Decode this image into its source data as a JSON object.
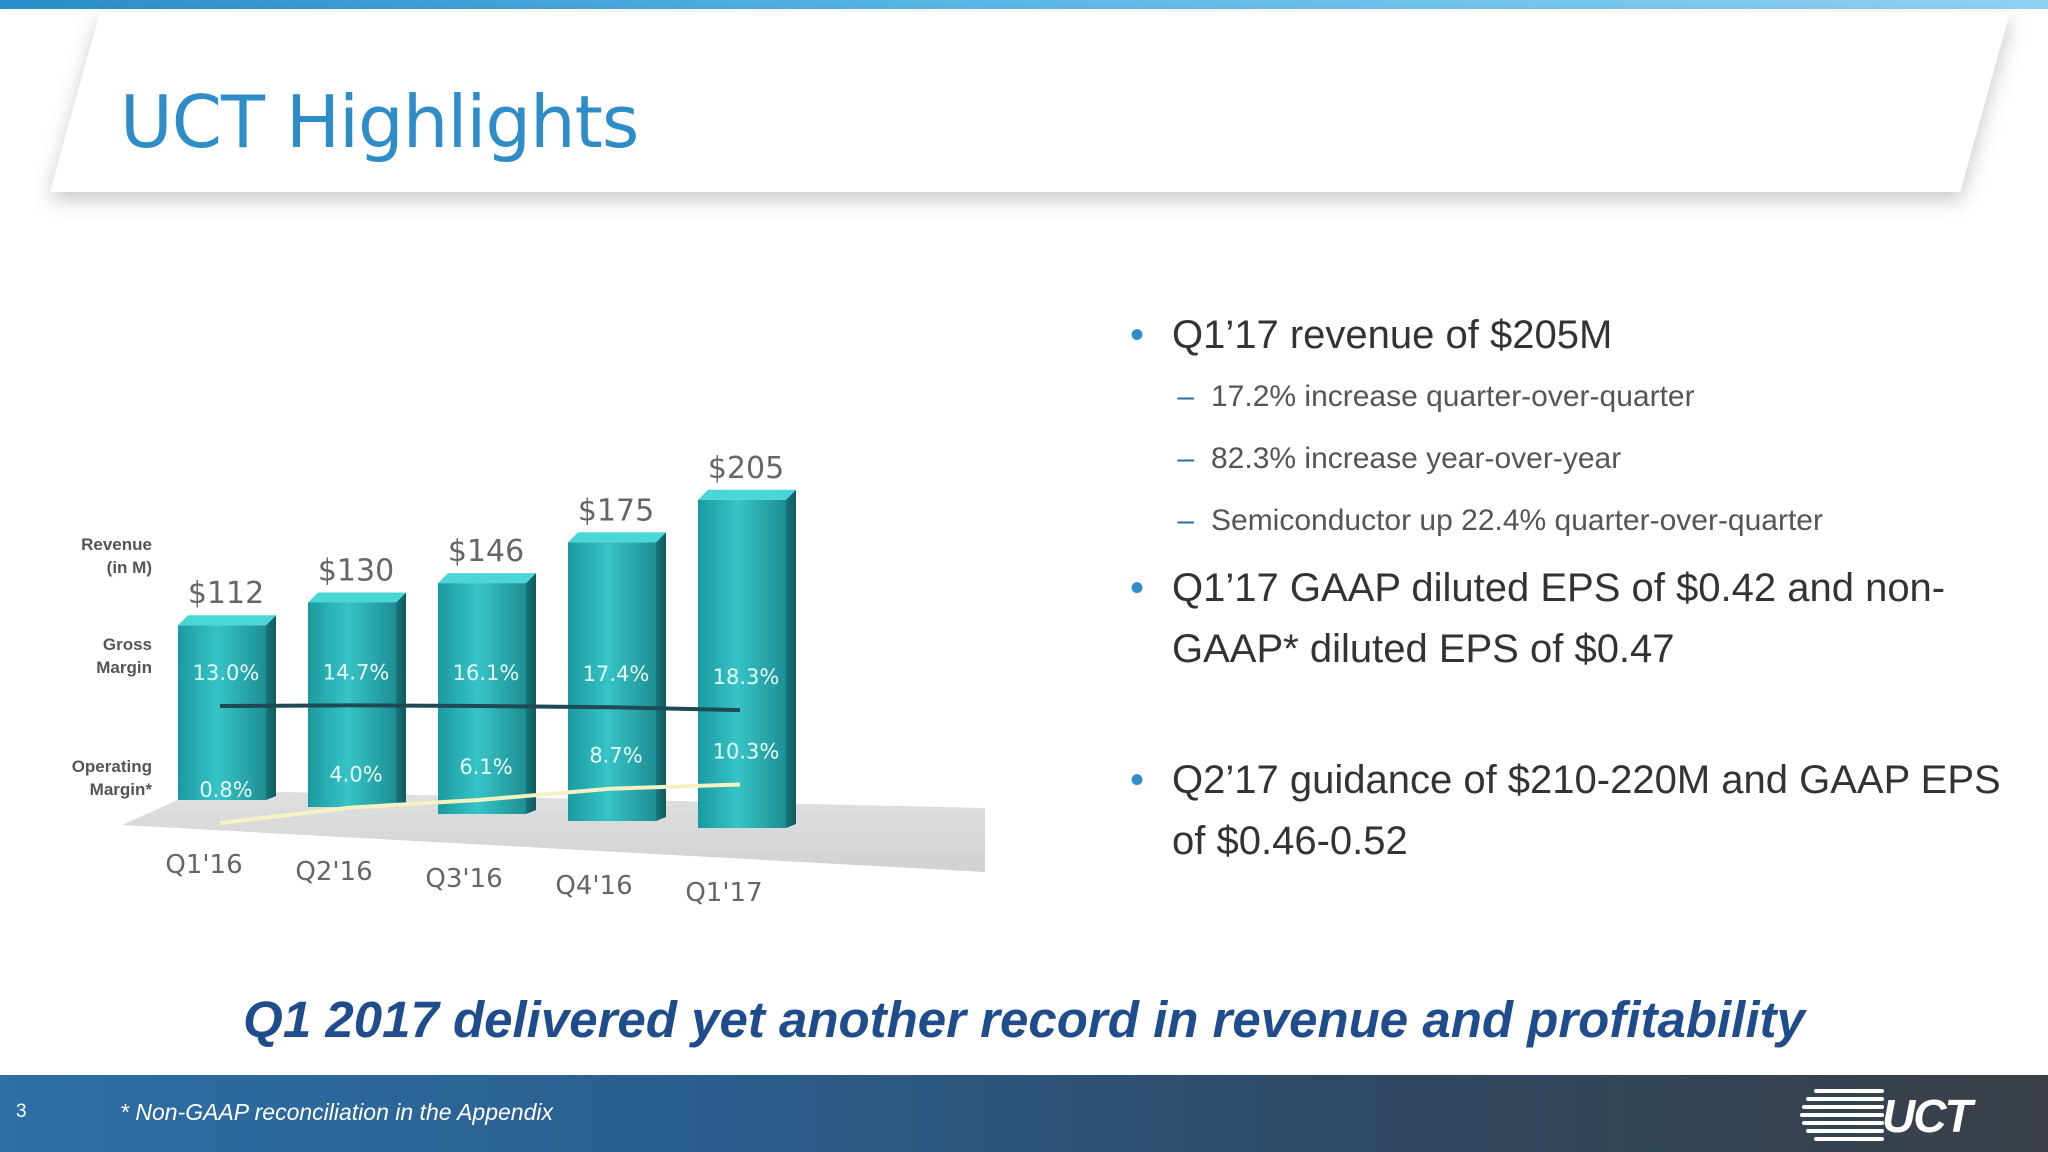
{
  "slide": {
    "title": "UCT Highlights",
    "tagline": "Q1 2017 delivered yet another record in revenue and profitability",
    "footnote": "* Non-GAAP reconciliation in the Appendix",
    "page_number": "3",
    "logo_text": "UCT",
    "colors": {
      "title": "#2e8cc8",
      "accent_bar": "#58b6e6",
      "bar_fill": "#2fbcbc",
      "gross_line": "#1f4a55",
      "operating_line": "#f4f2c2",
      "tagline": "#1f4c8c"
    }
  },
  "bullets": [
    {
      "level": 1,
      "text": "Q1’17 revenue of $205M"
    },
    {
      "level": 2,
      "text": "17.2% increase quarter-over-quarter"
    },
    {
      "level": 2,
      "text": "82.3% increase year-over-year"
    },
    {
      "level": 2,
      "text": "Semiconductor  up 22.4% quarter-over-quarter"
    },
    {
      "level": 1,
      "text": "Q1’17 GAAP diluted EPS of $0.42 and non-GAAP* diluted EPS of $0.47"
    },
    {
      "level": 1,
      "text": "Q2’17 guidance of $210-220M and GAAP EPS of $0.46-0.52"
    }
  ],
  "chart_data": {
    "type": "bar",
    "categories": [
      "Q1'16",
      "Q2'16",
      "Q3'16",
      "Q4'16",
      "Q1'17"
    ],
    "row_labels": [
      "Revenue (in M)",
      "Gross Margin",
      "Operating Margin*"
    ],
    "series": [
      {
        "name": "Revenue (in M)",
        "kind": "bar",
        "values": [
          112,
          130,
          146,
          175,
          205
        ],
        "labels": [
          "$112",
          "$130",
          "$146",
          "$175",
          "$205"
        ]
      },
      {
        "name": "Gross Margin",
        "kind": "line",
        "values": [
          13.0,
          14.7,
          16.1,
          17.4,
          18.3
        ],
        "labels": [
          "13.0%",
          "14.7%",
          "16.1%",
          "17.4%",
          "18.3%"
        ]
      },
      {
        "name": "Operating Margin*",
        "kind": "line",
        "values": [
          0.8,
          4.0,
          6.1,
          8.7,
          10.3
        ],
        "labels": [
          "0.8%",
          "4.0%",
          "6.1%",
          "8.7%",
          "10.3%"
        ]
      }
    ],
    "style": "3d",
    "gridlines": false
  }
}
